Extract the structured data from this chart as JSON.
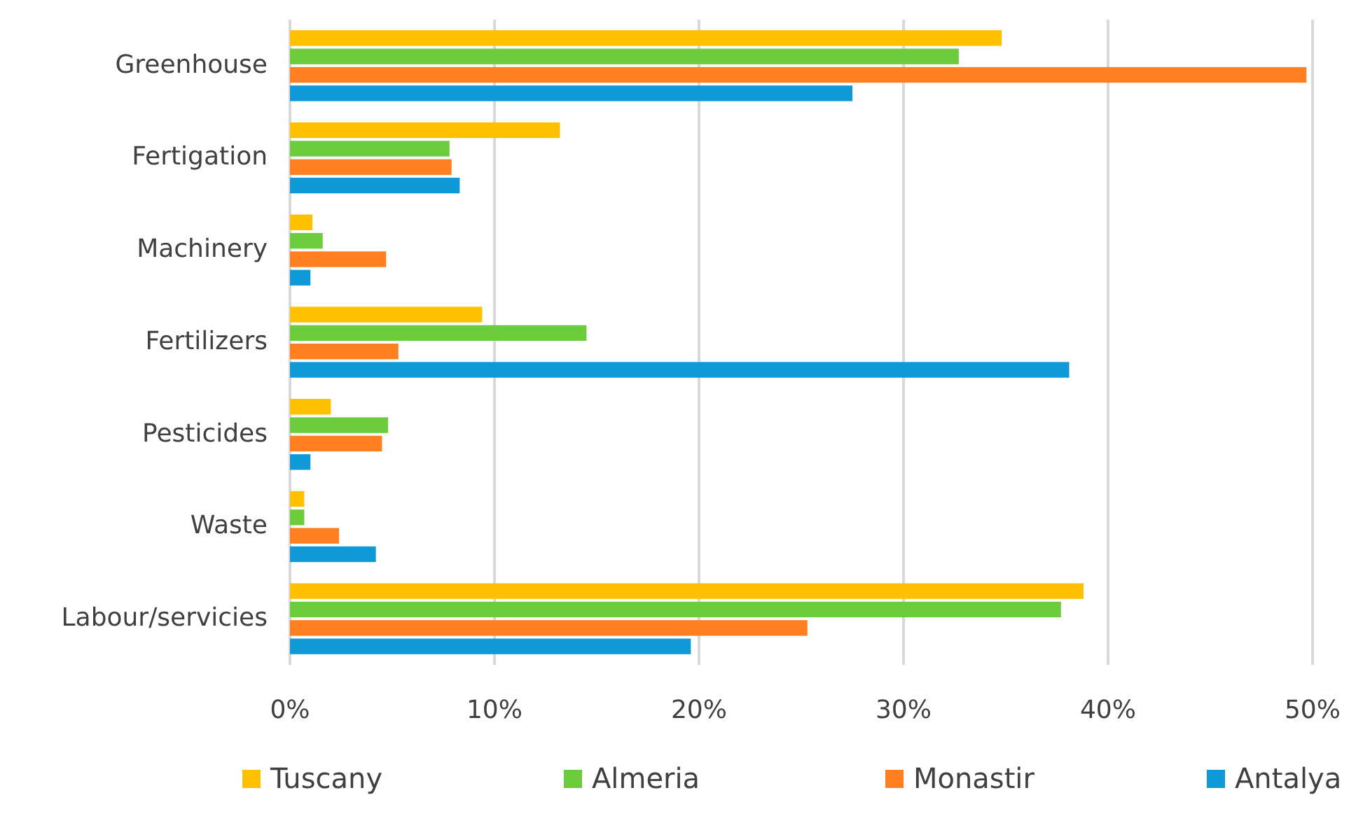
{
  "chart_data": {
    "type": "bar",
    "orientation": "horizontal",
    "categories": [
      "Greenhouse",
      "Fertigation",
      "Machinery",
      "Fertilizers",
      "Pesticides",
      "Waste",
      "Labour/servicies"
    ],
    "series": [
      {
        "name": "Tuscany",
        "color": "#ffc000",
        "values": [
          34.8,
          13.2,
          1.1,
          9.4,
          2.0,
          0.7,
          38.8
        ]
      },
      {
        "name": "Almeria",
        "color": "#6dcc3c",
        "values": [
          32.7,
          7.8,
          1.6,
          14.5,
          4.8,
          0.7,
          37.7
        ]
      },
      {
        "name": "Monastir",
        "color": "#ff7f21",
        "values": [
          49.7,
          7.9,
          4.7,
          5.3,
          4.5,
          2.4,
          25.3
        ]
      },
      {
        "name": "Antalya",
        "color": "#0f99d6",
        "values": [
          27.5,
          8.3,
          1.0,
          38.1,
          1.0,
          4.2,
          19.6
        ]
      }
    ],
    "xlim": [
      0,
      50
    ],
    "xticks": [
      {
        "value": 0,
        "label": "0%"
      },
      {
        "value": 10,
        "label": "10%"
      },
      {
        "value": 20,
        "label": "20%"
      },
      {
        "value": 30,
        "label": "30%"
      },
      {
        "value": 40,
        "label": "40%"
      },
      {
        "value": 50,
        "label": "50%"
      }
    ],
    "grid": "x",
    "legend": "bottom"
  }
}
